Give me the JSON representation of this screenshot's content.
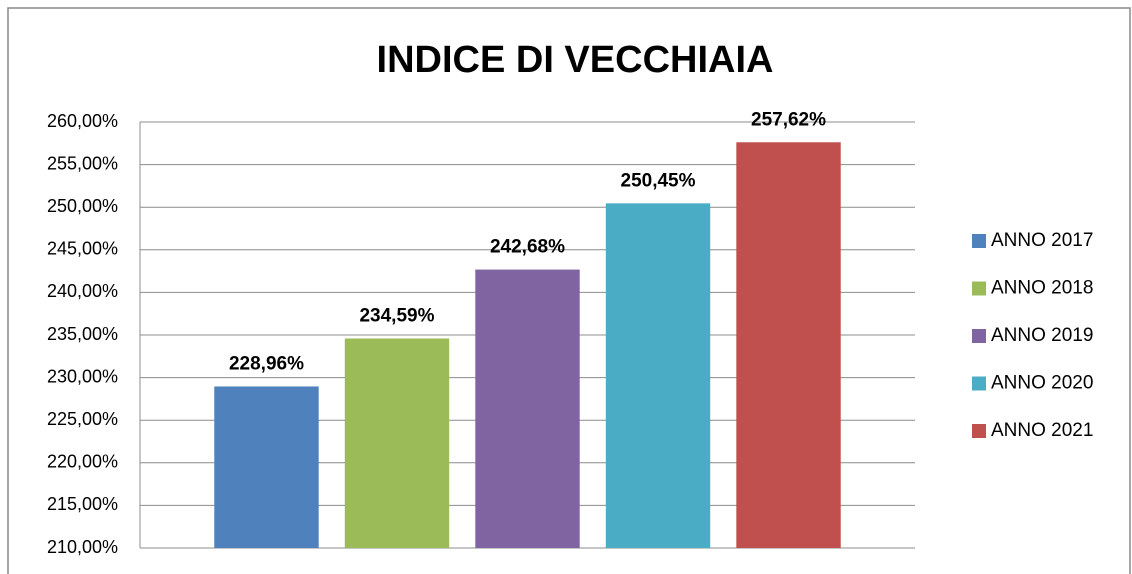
{
  "chart_data": {
    "type": "bar",
    "title": "INDICE DI VECCHIAIA",
    "categories": [
      null
    ],
    "series": [
      {
        "name": "ANNO 2017",
        "color": "#4f81bd",
        "values": [
          228.96
        ],
        "value_labels": [
          "228,96%"
        ]
      },
      {
        "name": "ANNO 2018",
        "color": "#9bbb59",
        "values": [
          234.59
        ],
        "value_labels": [
          "234,59%"
        ]
      },
      {
        "name": "ANNO 2019",
        "color": "#8064a2",
        "values": [
          242.68
        ],
        "value_labels": [
          "242,68%"
        ]
      },
      {
        "name": "ANNO 2020",
        "color": "#4bacc6",
        "values": [
          250.45
        ],
        "value_labels": [
          "250,45%"
        ]
      },
      {
        "name": "ANNO 2021",
        "color": "#c0504d",
        "values": [
          257.62
        ],
        "value_labels": [
          "257,62%"
        ]
      }
    ],
    "ylim": [
      210,
      260
    ],
    "yticks": [
      {
        "value": 210,
        "label": "210,00%"
      },
      {
        "value": 215,
        "label": "215,00%"
      },
      {
        "value": 220,
        "label": "220,00%"
      },
      {
        "value": 225,
        "label": "225,00%"
      },
      {
        "value": 230,
        "label": "230,00%"
      },
      {
        "value": 235,
        "label": "235,00%"
      },
      {
        "value": 240,
        "label": "240,00%"
      },
      {
        "value": 245,
        "label": "245,00%"
      },
      {
        "value": 250,
        "label": "250,00%"
      },
      {
        "value": 255,
        "label": "255,00%"
      },
      {
        "value": 260,
        "label": "260,00%"
      }
    ],
    "grid": true,
    "legend": "right"
  }
}
